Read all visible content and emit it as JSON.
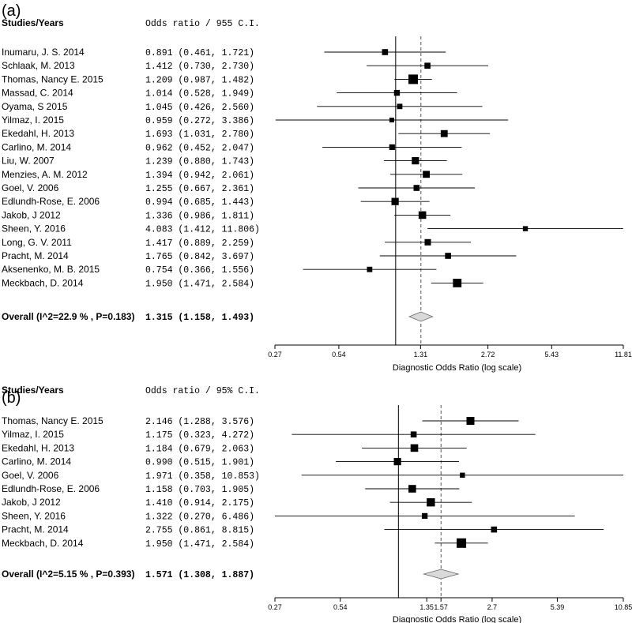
{
  "chart_data": [
    {
      "type": "forest",
      "panel_label": "(a)",
      "col_study_header": "Studies/Years",
      "col_stat_header": "Odds ratio / 955 C.I.",
      "xlabel": "Diagnostic Odds Ratio (log scale)",
      "x_scale": "log",
      "xlim": [
        0.27,
        11.81
      ],
      "x_ticks": [
        {
          "value": 0.27,
          "label": "0.27"
        },
        {
          "value": 0.54,
          "label": "0.54"
        },
        {
          "value": 1.31,
          "label": "1.31"
        },
        {
          "value": 2.72,
          "label": "2.72"
        },
        {
          "value": 5.43,
          "label": "5.43"
        },
        {
          "value": 11.81,
          "label": "11.81"
        }
      ],
      "reference_line": 1.0,
      "pooled_line": 1.315,
      "studies": [
        {
          "name": "Inumaru, J. S. 2014",
          "or": 0.891,
          "lo": 0.461,
          "hi": 1.721,
          "text": "0.891 (0.461, 1.721)",
          "weight": 0.45
        },
        {
          "name": "Schlaak, M. 2013",
          "or": 1.412,
          "lo": 0.73,
          "hi": 2.73,
          "text": "1.412 (0.730, 2.730)",
          "weight": 0.45
        },
        {
          "name": "Thomas, Nancy E. 2015",
          "or": 1.209,
          "lo": 0.987,
          "hi": 1.482,
          "text": "1.209 (0.987, 1.482)",
          "weight": 1.0
        },
        {
          "name": "Massad, C. 2014",
          "or": 1.014,
          "lo": 0.528,
          "hi": 1.949,
          "text": "1.014 (0.528, 1.949)",
          "weight": 0.42
        },
        {
          "name": "Oyama, S 2015",
          "or": 1.045,
          "lo": 0.426,
          "hi": 2.56,
          "text": "1.045 (0.426, 2.560)",
          "weight": 0.35
        },
        {
          "name": "Yilmaz, I. 2015",
          "or": 0.959,
          "lo": 0.272,
          "hi": 3.386,
          "text": "0.959 (0.272, 3.386)",
          "weight": 0.25
        },
        {
          "name": "Ekedahl, H. 2013",
          "or": 1.693,
          "lo": 1.031,
          "hi": 2.78,
          "text": "1.693 (1.031, 2.780)",
          "weight": 0.6
        },
        {
          "name": "Carlino, M. 2014",
          "or": 0.962,
          "lo": 0.452,
          "hi": 2.047,
          "text": "0.962 (0.452, 2.047)",
          "weight": 0.4
        },
        {
          "name": "Liu, W.  2007",
          "or": 1.239,
          "lo": 0.88,
          "hi": 1.743,
          "text": "1.239 (0.880, 1.743)",
          "weight": 0.65
        },
        {
          "name": "Menzies, A. M. 2012",
          "or": 1.394,
          "lo": 0.942,
          "hi": 2.061,
          "text": "1.394 (0.942, 2.061)",
          "weight": 0.6
        },
        {
          "name": "Goel, V.  2006",
          "or": 1.255,
          "lo": 0.667,
          "hi": 2.361,
          "text": "1.255 (0.667, 2.361)",
          "weight": 0.45
        },
        {
          "name": "Edlundh-Rose, E. 2006",
          "or": 0.994,
          "lo": 0.685,
          "hi": 1.443,
          "text": "0.994 (0.685, 1.443)",
          "weight": 0.65
        },
        {
          "name": "Jakob, J 2012",
          "or": 1.336,
          "lo": 0.986,
          "hi": 1.811,
          "text": "1.336 (0.986, 1.811)",
          "weight": 0.7
        },
        {
          "name": "Sheen, Y. 2016",
          "or": 4.083,
          "lo": 1.412,
          "hi": 11.806,
          "text": "4.083 (1.412, 11.806)",
          "weight": 0.3
        },
        {
          "name": "Long, G. V. 2011",
          "or": 1.417,
          "lo": 0.889,
          "hi": 2.259,
          "text": "1.417 (0.889, 2.259)",
          "weight": 0.5
        },
        {
          "name": "Pracht, M. 2014",
          "or": 1.765,
          "lo": 0.842,
          "hi": 3.697,
          "text": "1.765 (0.842, 3.697)",
          "weight": 0.45
        },
        {
          "name": "Aksenenko, M. B. 2015",
          "or": 0.754,
          "lo": 0.366,
          "hi": 1.556,
          "text": "0.754 (0.366, 1.556)",
          "weight": 0.35
        },
        {
          "name": "Meckbach, D. 2014",
          "or": 1.95,
          "lo": 1.471,
          "hi": 2.584,
          "text": "1.950 (1.471, 2.584)",
          "weight": 0.85
        }
      ],
      "overall": {
        "label": "Overall (I^2=22.9 % , P=0.183)",
        "or": 1.315,
        "lo": 1.158,
        "hi": 1.493,
        "text": "1.315 (1.158, 1.493)"
      }
    },
    {
      "type": "forest",
      "panel_label": "(b)",
      "col_study_header": "Studies/Years",
      "col_stat_header": "Odds ratio / 95% C.I.",
      "xlabel": "Diagnostic Odds Ratio (log scale)",
      "x_scale": "log",
      "xlim": [
        0.27,
        10.85
      ],
      "x_ticks": [
        {
          "value": 0.27,
          "label": "0.27"
        },
        {
          "value": 0.54,
          "label": "0.54"
        },
        {
          "value": 1.35,
          "label": "1.35"
        },
        {
          "value": 1.57,
          "label": "1.57"
        },
        {
          "value": 2.7,
          "label": "2.7"
        },
        {
          "value": 5.39,
          "label": "5.39"
        },
        {
          "value": 10.85,
          "label": "10.85"
        }
      ],
      "reference_line": 1.0,
      "pooled_line": 1.571,
      "studies": [
        {
          "name": "Thomas, Nancy E. 2015",
          "or": 2.146,
          "lo": 1.288,
          "hi": 3.576,
          "text": "2.146 (1.288, 3.576)",
          "weight": 0.75
        },
        {
          "name": "Yilmaz, I. 2015",
          "or": 1.175,
          "lo": 0.323,
          "hi": 4.272,
          "text": "1.175 (0.323, 4.272)",
          "weight": 0.45
        },
        {
          "name": "Ekedahl, H. 2013",
          "or": 1.184,
          "lo": 0.679,
          "hi": 2.063,
          "text": "1.184 (0.679, 2.063)",
          "weight": 0.7
        },
        {
          "name": "Carlino, M. 2014",
          "or": 0.99,
          "lo": 0.515,
          "hi": 1.901,
          "text": "0.990 (0.515, 1.901)",
          "weight": 0.65
        },
        {
          "name": "Goel, V.  2006",
          "or": 1.971,
          "lo": 0.358,
          "hi": 10.853,
          "text": "1.971 (0.358, 10.853)",
          "weight": 0.3
        },
        {
          "name": "Edlundh-Rose, E. 2006",
          "or": 1.158,
          "lo": 0.703,
          "hi": 1.905,
          "text": "1.158 (0.703, 1.905)",
          "weight": 0.7
        },
        {
          "name": "Jakob, J 2012",
          "or": 1.41,
          "lo": 0.914,
          "hi": 2.175,
          "text": "1.410 (0.914, 2.175)",
          "weight": 0.8
        },
        {
          "name": "Sheen, Y. 2016",
          "or": 1.322,
          "lo": 0.27,
          "hi": 6.486,
          "text": "1.322 (0.270, 6.486)",
          "weight": 0.4
        },
        {
          "name": "Pracht, M. 2014",
          "or": 2.755,
          "lo": 0.861,
          "hi": 8.815,
          "text": "2.755 (0.861, 8.815)",
          "weight": 0.45
        },
        {
          "name": "Meckbach, D. 2014",
          "or": 1.95,
          "lo": 1.471,
          "hi": 2.584,
          "text": "1.950 (1.471, 2.584)",
          "weight": 1.0
        }
      ],
      "overall": {
        "label": "Overall (I^2=5.15 % , P=0.393)",
        "or": 1.571,
        "lo": 1.308,
        "hi": 1.887,
        "text": "1.571 (1.308, 1.887)"
      }
    }
  ],
  "colors": {
    "ink": "#000000",
    "diamond_fill": "#d9d9d9",
    "diamond_stroke": "#666666",
    "line": "#000000"
  }
}
